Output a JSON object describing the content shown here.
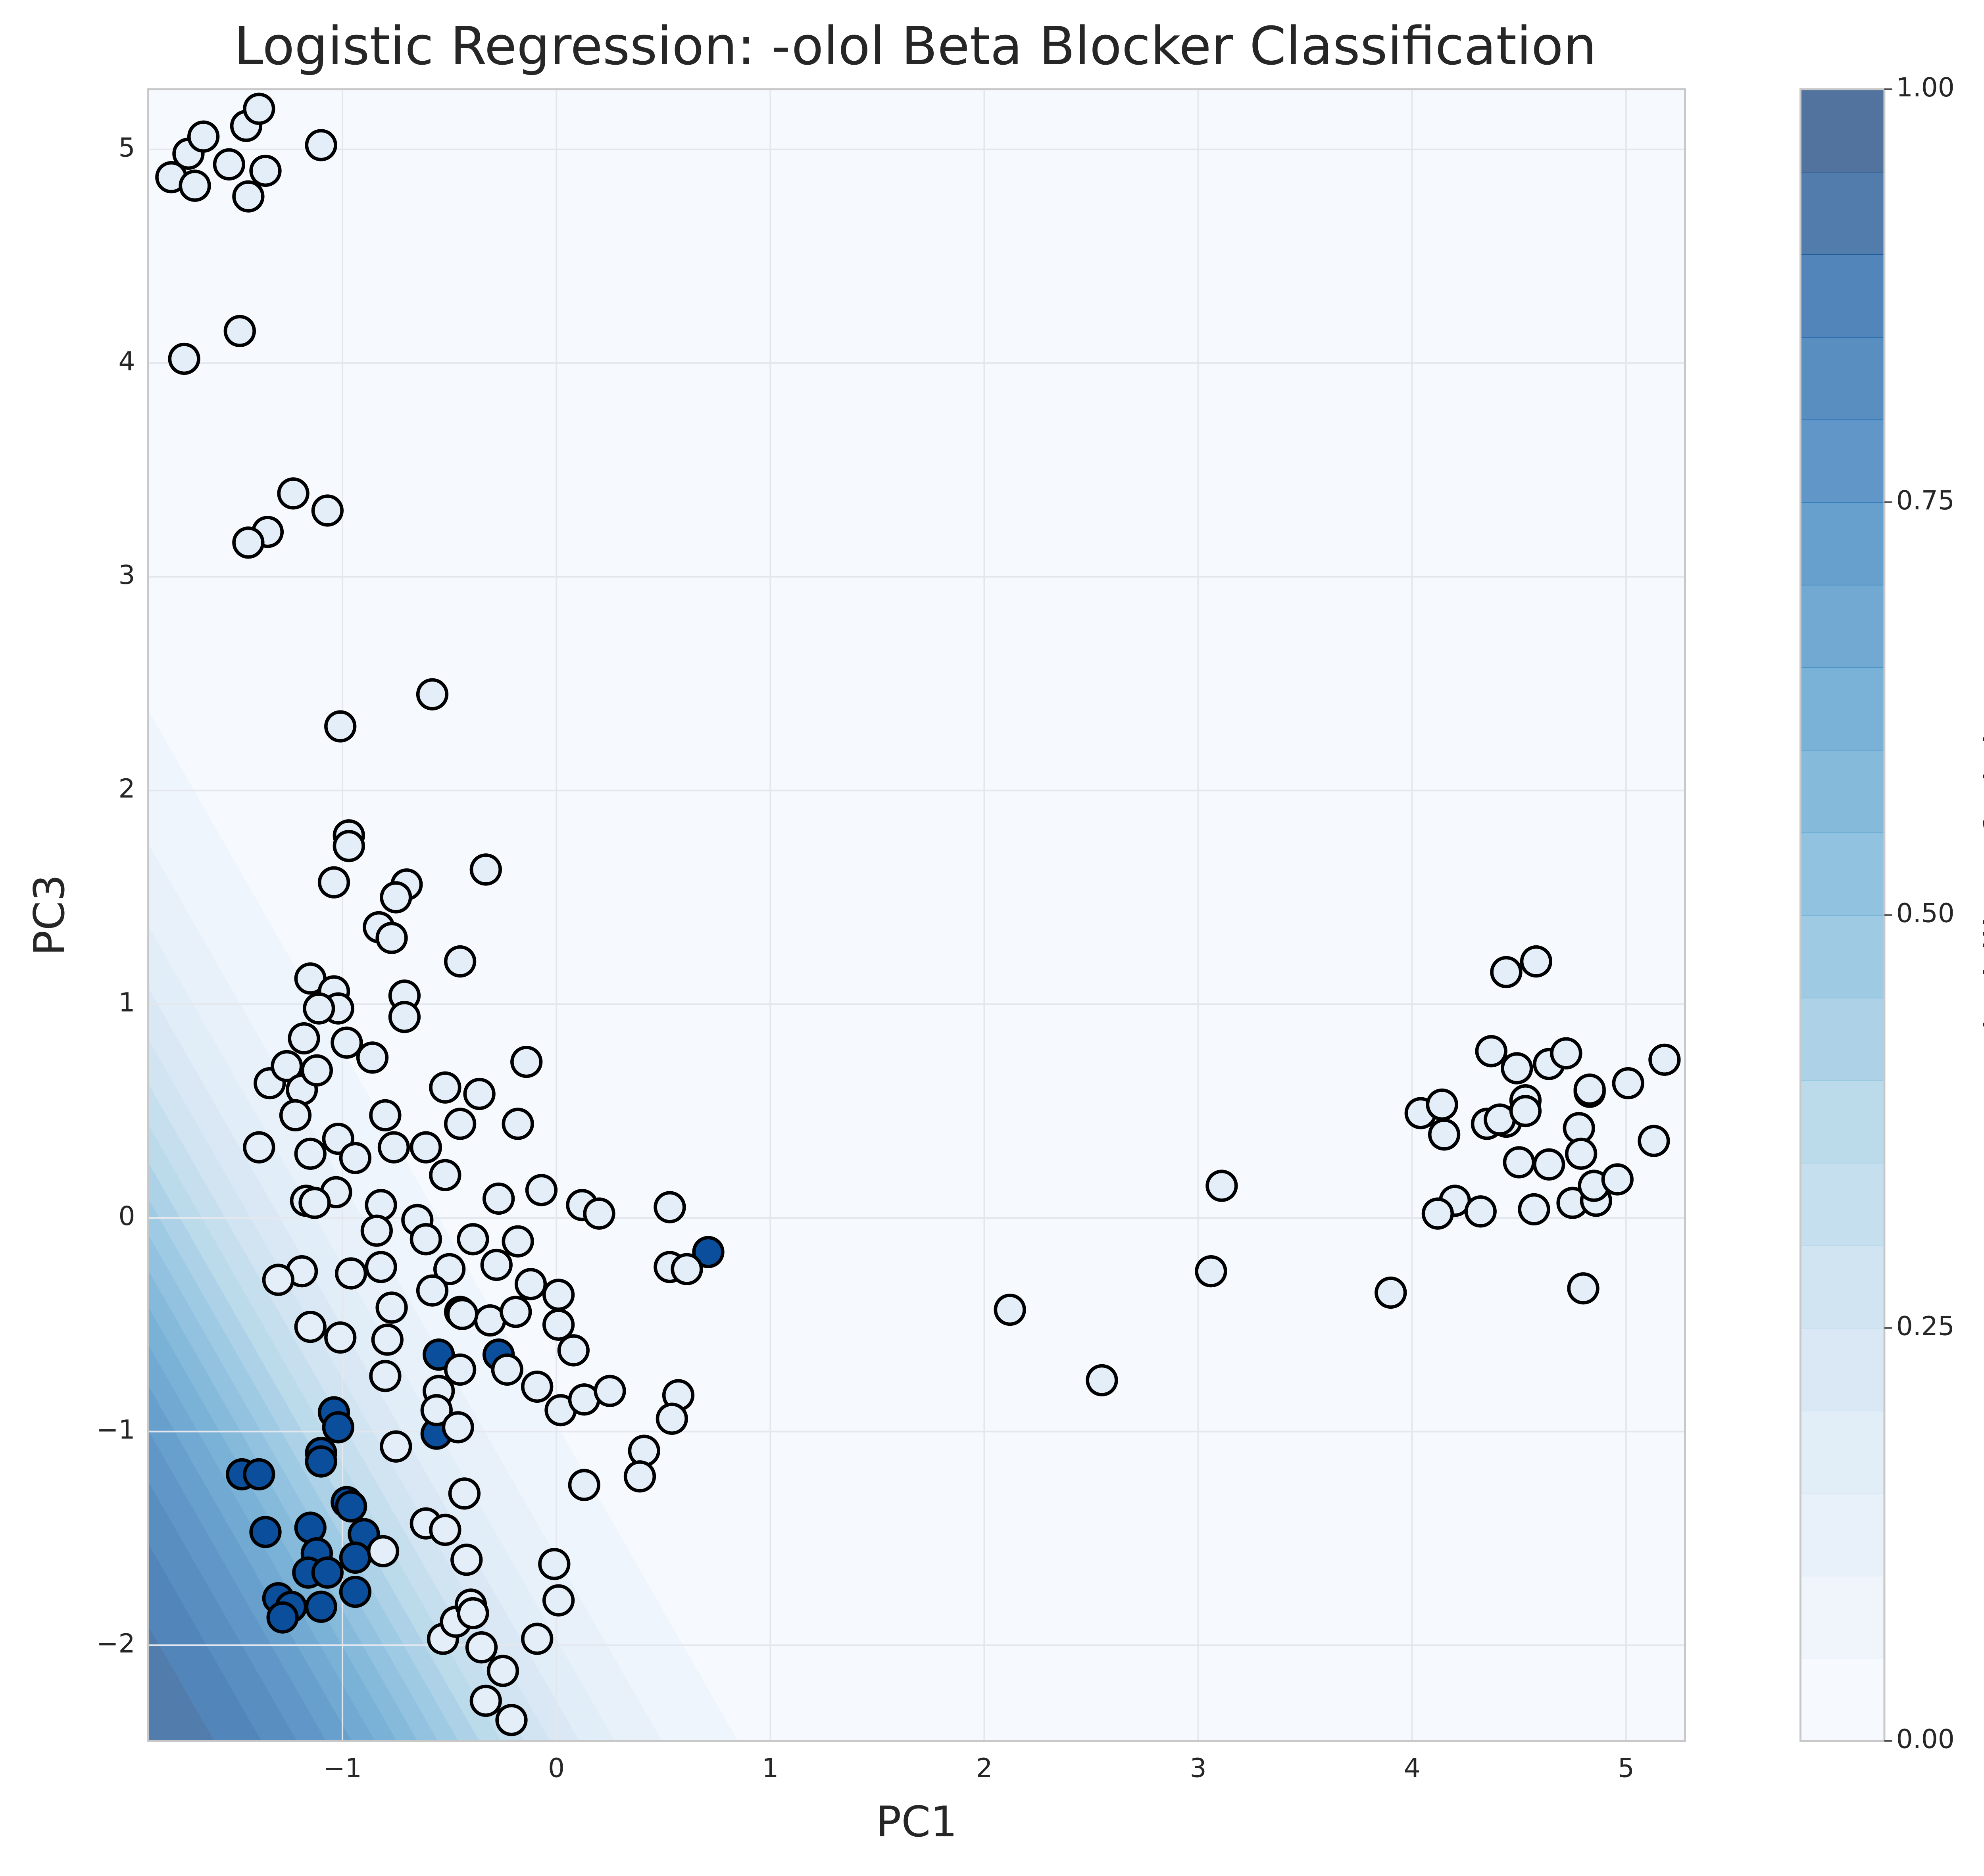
{
  "chart_data": {
    "type": "scatter",
    "title": "Logistic Regression: -olol Beta Blocker Classification",
    "x_label": "PC1",
    "y_label": "PC3",
    "colorbar_label": "Probability of olol",
    "xlim": [
      -1.908,
      5.276
    ],
    "ylim": [
      -2.448,
      5.282
    ],
    "xticks": [
      {
        "value": -1,
        "label": "−1"
      },
      0,
      1,
      2,
      3,
      4,
      5
    ],
    "yticks": [
      {
        "value": -2,
        "label": "−2"
      },
      {
        "value": -1,
        "label": "−1"
      },
      0,
      1,
      2,
      3,
      4,
      5
    ],
    "clim": [
      0,
      1
    ],
    "cticks": [
      {
        "value": 0,
        "label": "0.00"
      },
      {
        "value": 0.25,
        "label": "0.25"
      },
      {
        "value": 0.5,
        "label": "0.50"
      },
      {
        "value": 0.75,
        "label": "0.75"
      },
      {
        "value": 1,
        "label": "1.00"
      }
    ],
    "grid": true,
    "decision_surface": {
      "intercept": -4.1,
      "pc1": -2.1,
      "pc3": -1.2
    },
    "series": [
      {
        "color": "#0b4f9c",
        "x": [
          0.71,
          -0.55,
          -0.45,
          -0.27,
          -0.56,
          -1.04,
          -1.02,
          -1.1,
          -1.1,
          -1.47,
          -1.39,
          -0.98,
          -0.96,
          -0.9,
          -1.36,
          -1.15,
          -1.12,
          -0.94,
          -1.16,
          -1.07,
          -1.3,
          -1.24,
          -1.28,
          -1.1,
          -0.94
        ],
        "values": [
          -0.16,
          -0.64,
          -0.44,
          -0.64,
          -1.01,
          -0.91,
          -0.98,
          -1.1,
          -1.14,
          -1.2,
          -1.2,
          -1.33,
          -1.35,
          -1.48,
          -1.47,
          -1.45,
          -1.57,
          -1.59,
          -1.66,
          -1.66,
          -1.78,
          -1.82,
          -1.87,
          -1.82,
          -1.75
        ]
      },
      {
        "color": "#e3eef9",
        "x": [
          -1.8,
          -1.72,
          -1.69,
          -1.65,
          -1.53,
          -1.45,
          -1.39,
          -1.36,
          -1.44,
          -1.1,
          -1.74,
          -1.48,
          -1.23,
          -1.07,
          -1.35,
          -1.44,
          -0.58,
          -1.01,
          -0.97,
          -0.97,
          -1.04,
          -0.7,
          -0.75,
          -0.33,
          -0.83,
          -0.77,
          -0.45,
          -0.71,
          -0.71,
          -1.15,
          -1.04,
          -1.02,
          -1.11,
          -1.18,
          -0.98,
          -0.86,
          -0.14,
          -1.34,
          -1.26,
          -1.19,
          -1.12,
          -0.52,
          -0.36,
          -1.22,
          -0.8,
          -1.02,
          -0.45,
          -0.18,
          -0.76,
          -1.39,
          -1.15,
          -0.94,
          -0.61,
          -1.03,
          -1.17,
          -1.13,
          -0.52,
          -0.27,
          -0.07,
          0.12,
          0.2,
          0.53,
          -0.82,
          -0.65,
          -0.84,
          -0.61,
          -0.39,
          -0.18,
          -1.19,
          -1.3,
          -0.96,
          -0.82,
          -0.5,
          -0.28,
          -0.12,
          0.01,
          -0.77,
          -0.58,
          -0.31,
          -1.15,
          -1.01,
          -0.79,
          -0.44,
          -0.19,
          0.08,
          0.01,
          -0.8,
          -0.45,
          -0.23,
          -0.09,
          -0.55,
          -0.56,
          -0.46,
          0.02,
          0.13,
          0.25,
          0.57,
          0.54,
          0.41,
          0.39,
          0.13,
          -0.75,
          -0.43,
          -0.61,
          -0.52,
          -0.42,
          -0.81,
          -0.01,
          0.01,
          -0.53,
          -0.47,
          -0.4,
          -0.39,
          -0.35,
          -0.09,
          -0.25,
          -0.33,
          -0.21,
          0.53,
          0.61,
          2.12,
          2.55,
          3.06,
          3.11,
          3.9,
          4.04,
          4.14,
          4.15,
          4.2,
          4.12,
          4.32,
          4.37,
          4.35,
          4.44,
          4.41,
          4.49,
          4.5,
          4.53,
          4.53,
          4.57,
          4.44,
          4.58,
          4.64,
          4.64,
          4.72,
          4.78,
          4.79,
          4.75,
          4.86,
          4.8,
          4.83,
          4.83,
          4.85,
          4.96,
          5.01,
          5.13,
          5.18
        ],
        "values": [
          4.87,
          4.98,
          4.83,
          5.06,
          4.93,
          5.11,
          5.19,
          4.9,
          4.78,
          5.02,
          4.02,
          4.15,
          3.39,
          3.31,
          3.21,
          3.16,
          2.45,
          2.3,
          1.79,
          1.74,
          1.57,
          1.56,
          1.5,
          1.63,
          1.36,
          1.31,
          1.2,
          1.04,
          0.94,
          1.12,
          1.06,
          0.98,
          0.98,
          0.84,
          0.82,
          0.75,
          0.73,
          0.63,
          0.71,
          0.6,
          0.69,
          0.61,
          0.58,
          0.48,
          0.48,
          0.37,
          0.44,
          0.44,
          0.33,
          0.33,
          0.3,
          0.28,
          0.33,
          0.12,
          0.08,
          0.07,
          0.2,
          0.09,
          0.13,
          0.06,
          0.02,
          0.05,
          0.06,
          -0.01,
          -0.06,
          -0.1,
          -0.1,
          -0.11,
          -0.25,
          -0.29,
          -0.26,
          -0.23,
          -0.24,
          -0.22,
          -0.31,
          -0.36,
          -0.42,
          -0.34,
          -0.48,
          -0.51,
          -0.56,
          -0.57,
          -0.45,
          -0.44,
          -0.62,
          -0.5,
          -0.74,
          -0.71,
          -0.71,
          -0.79,
          -0.81,
          -0.9,
          -0.98,
          -0.9,
          -0.85,
          -0.81,
          -0.83,
          -0.94,
          -1.09,
          -1.21,
          -1.25,
          -1.07,
          -1.29,
          -1.43,
          -1.46,
          -1.6,
          -1.56,
          -1.62,
          -1.79,
          -1.97,
          -1.89,
          -1.81,
          -1.85,
          -2.01,
          -1.97,
          -2.12,
          -2.26,
          -2.35,
          -0.23,
          -0.24,
          -0.43,
          -0.76,
          -0.25,
          0.15,
          -0.35,
          0.49,
          0.53,
          0.39,
          0.08,
          0.02,
          0.03,
          0.78,
          0.44,
          0.45,
          0.46,
          0.7,
          0.26,
          0.55,
          0.5,
          0.04,
          1.15,
          1.2,
          0.25,
          0.72,
          0.77,
          0.42,
          0.3,
          0.07,
          0.08,
          -0.33,
          0.59,
          0.6,
          0.15,
          0.18,
          0.63,
          0.36,
          0.74
        ]
      }
    ]
  }
}
